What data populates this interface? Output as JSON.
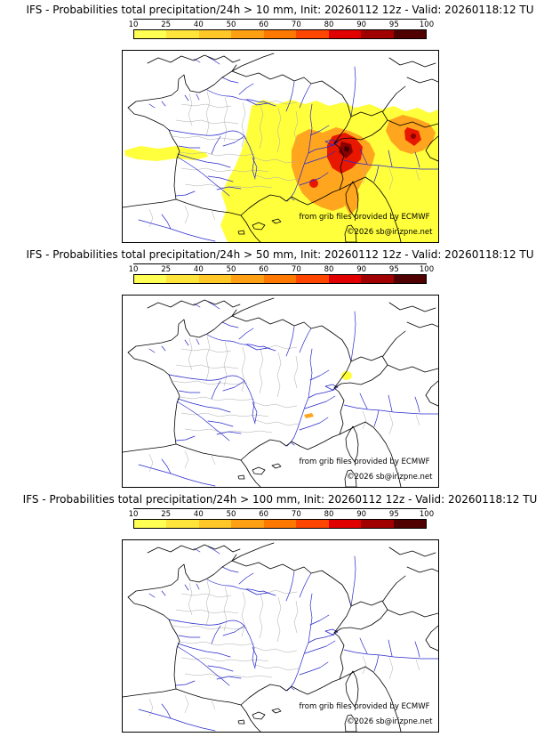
{
  "panels": [
    {
      "id": "p1",
      "threshold_label": "> 10 mm",
      "title": "IFS - Probabilities total precipitation/24h > 10 mm, Init: 20260112 12z - Valid: 20260118:12 TU"
    },
    {
      "id": "p2",
      "threshold_label": "> 50 mm",
      "title": "IFS - Probabilities total precipitation/24h > 50 mm, Init: 20260112 12z - Valid: 20260118:12 TU"
    },
    {
      "id": "p3",
      "threshold_label": "> 100 mm",
      "title": "IFS - Probabilities total precipitation/24h > 100 mm, Init: 20260112 12z - Valid: 20260118:12 TU"
    }
  ],
  "colorbar": {
    "ticks": [
      "10",
      "25",
      "40",
      "50",
      "60",
      "70",
      "80",
      "90",
      "95",
      "100"
    ],
    "segment_colors": [
      "#FFFF54",
      "#FFE43C",
      "#FFC828",
      "#FFA014",
      "#FF7800",
      "#FF4600",
      "#E10000",
      "#A00000",
      "#500000"
    ]
  },
  "attribution": {
    "line1": "from grib files provided by ECMWF",
    "line2": "©2026 sb@irizpne.net"
  },
  "map_colors": {
    "river": "#2828CC",
    "border": "#000000",
    "department": "#ABABAB",
    "prob_low": "#FFFF3C",
    "prob_mid": "#FFA51E",
    "prob_high": "#E81800",
    "prob_very_high": "#8B0000",
    "prob_extreme": "#3D0000"
  }
}
